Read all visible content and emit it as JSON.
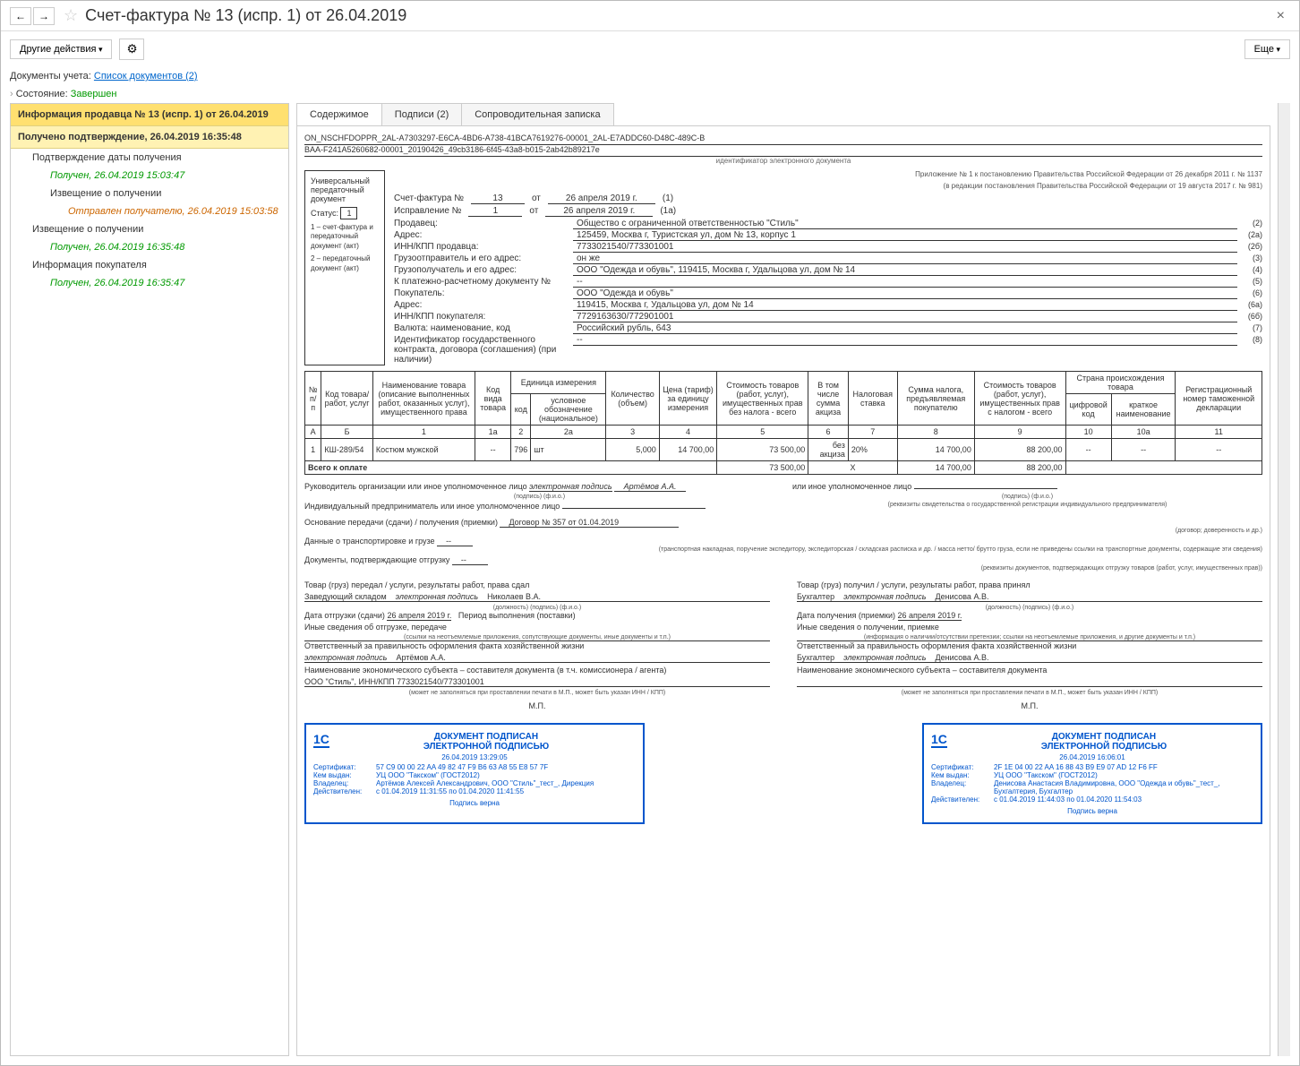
{
  "window": {
    "title": "Счет-фактура № 13 (испр. 1) от 26.04.2019",
    "other_actions": "Другие действия",
    "more": "Еще",
    "docs_label": "Документы учета:",
    "docs_link": "Список документов (2)",
    "state_label": "Состояние:",
    "state_value": "Завершен"
  },
  "sidebar": {
    "header1": "Информация продавца № 13 (испр. 1) от 26.04.2019",
    "header2": "Получено подтверждение, 26.04.2019 16:35:48",
    "items": [
      {
        "text": "Подтверждение даты получения",
        "cls": "sb-item"
      },
      {
        "text": "Получен, 26.04.2019 15:03:47",
        "cls": "sb-item l2 sb-green"
      },
      {
        "text": "Извещение о получении",
        "cls": "sb-item l2"
      },
      {
        "text": "Отправлен получателю, 26.04.2019 15:03:58",
        "cls": "sb-item l3 sb-orange"
      },
      {
        "text": "Извещение о получении",
        "cls": "sb-item"
      },
      {
        "text": "Получен, 26.04.2019 16:35:48",
        "cls": "sb-item l2 sb-green"
      },
      {
        "text": "Информация покупателя",
        "cls": "sb-item"
      },
      {
        "text": "Получен, 26.04.2019 16:35:47",
        "cls": "sb-item l2 sb-green"
      }
    ]
  },
  "tabs": {
    "t1": "Содержимое",
    "t2": "Подписи (2)",
    "t3": "Сопроводительная записка"
  },
  "doc": {
    "id_line1": "ON_NSCHFDOPPR_2AL-A7303297-E6CA-4BD6-A738-41BCA7619276-00001_2AL-E7ADDC60-D48C-489C-B",
    "id_line2": "BAA-F241A5260682-00001_20190426_49cb3186-6f45-43a8-b015-2ab42b89217e",
    "id_label": "идентификатор электронного документа",
    "upd_title": "Универсальный передаточный документ",
    "status_label": "Статус:",
    "status_value": "1",
    "note1": "1 – счет-фактура и передаточный документ (акт)",
    "note2": "2 – передаточный документ (акт)",
    "hdr_right1": "Приложение № 1 к постановлению Правительства Российской Федерации от 26 декабря 2011 г. № 1137",
    "hdr_right2": "(в редакции постановления Правительства Российской Федерации от 19 августа 2017 г. № 981)",
    "invoice_label": "Счет-фактура №",
    "invoice_num": "13",
    "date_label": "от",
    "invoice_date": "26 апреля 2019 г.",
    "line1_num": "(1)",
    "correction_label": "Исправление №",
    "correction_num": "1",
    "correction_date": "26 апреля 2019 г.",
    "line1a_num": "(1а)",
    "fields": [
      {
        "label": "Продавец:",
        "value": "Общество с ограниченной ответственностью \"Стиль\"",
        "num": "(2)"
      },
      {
        "label": "Адрес:",
        "value": "125459, Москва г, Туристская ул, дом № 13, корпус 1",
        "num": "(2а)"
      },
      {
        "label": "ИНН/КПП продавца:",
        "value": "7733021540/773301001",
        "num": "(2б)"
      },
      {
        "label": "Грузоотправитель и его адрес:",
        "value": "он же",
        "num": "(3)"
      },
      {
        "label": "Грузополучатель и его адрес:",
        "value": "ООО \"Одежда и обувь\", 119415, Москва г, Удальцова ул, дом № 14",
        "num": "(4)"
      },
      {
        "label": "К платежно-расчетному документу №",
        "value": "--",
        "num": "(5)"
      },
      {
        "label": "Покупатель:",
        "value": "ООО \"Одежда и обувь\"",
        "num": "(6)"
      },
      {
        "label": "Адрес:",
        "value": "119415, Москва г, Удальцова ул, дом № 14",
        "num": "(6а)"
      },
      {
        "label": "ИНН/КПП покупателя:",
        "value": "7729163630/772901001",
        "num": "(6б)"
      },
      {
        "label": "Валюта: наименование, код",
        "value": "Российский рубль, 643",
        "num": "(7)"
      },
      {
        "label": "Идентификатор государственного контракта, договора (соглашения) (при наличии)",
        "value": "--",
        "num": "(8)"
      }
    ],
    "table_headers": {
      "col_a": "№ п/п",
      "col_b": "Код товара/ работ, услуг",
      "col1": "Наименование товара (описание выполненных работ, оказанных услуг), имущественного права",
      "col1a": "Код вида товара",
      "col2_grp": "Единица измерения",
      "col2": "код",
      "col2a": "условное обозначение (национальное)",
      "col3": "Количество (объем)",
      "col4": "Цена (тариф) за единицу измерения",
      "col5": "Стоимость товаров (работ, услуг), имущественных прав без налога - всего",
      "col6": "В том числе сумма акциза",
      "col7": "Налоговая ставка",
      "col8": "Сумма налога, предъявляемая покупателю",
      "col9": "Стоимость товаров (работ, услуг), имущественных прав с налогом - всего",
      "col10_grp": "Страна происхождения товара",
      "col10": "цифровой код",
      "col10a": "краткое наименование",
      "col11": "Регистрационный номер таможенной декларации",
      "num_a": "А",
      "num_b": "Б",
      "num1": "1",
      "num1a": "1а",
      "num2": "2",
      "num2a": "2а",
      "num3": "3",
      "num4": "4",
      "num5": "5",
      "num6": "6",
      "num7": "7",
      "num8": "8",
      "num9": "9",
      "num10": "10",
      "num10a": "10а",
      "num11": "11"
    },
    "table_row": {
      "a": "1",
      "b": "КШ-289/54",
      "c1": "Костюм мужской",
      "c1a": "--",
      "c2": "796",
      "c2a": "шт",
      "c3": "5,000",
      "c4": "14 700,00",
      "c5": "73 500,00",
      "c6": "без акциза",
      "c7": "20%",
      "c8": "14 700,00",
      "c9": "88 200,00",
      "c10": "--",
      "c10a": "--",
      "c11": "--"
    },
    "total_label": "Всего к оплате",
    "total_5": "73 500,00",
    "total_x": "Х",
    "total_8": "14 700,00",
    "total_9": "88 200,00",
    "sig": {
      "mgr_label": "Руководитель организации или иное уполномоченное лицо",
      "esign": "электронная подпись",
      "mgr_name": "Артёмов А.А.",
      "other_label": "или иное уполномоченное лицо",
      "ip_label": "Индивидуальный предприниматель или иное уполномоченное лицо",
      "podpis": "(подпись)",
      "fio": "(ф.и.о.)",
      "rekvizity": "(реквизиты свидетельства о государственной регистрации индивидуального предпринимателя)"
    },
    "transfer": {
      "basis_label": "Основание передачи (сдачи) / получения (приемки)",
      "basis_value": "Договор № 357 от 01.04.2019",
      "basis_hint": "(договор; доверенность и др.)",
      "transport_label": "Данные о транспортировке и грузе",
      "transport_value": "--",
      "transport_hint": "(транспортная накладная, поручение экспедитору, экспедиторская / складская расписка и др. / масса нетто/ брутто груза, если не приведены ссылки на транспортные документы, содержащие эти сведения)",
      "shipdocs_label": "Документы, подтверждающие отгрузку",
      "shipdocs_value": "--",
      "shipdocs_hint": "(реквизиты документов, подтверждающих отгрузку товаров (работ, услуг, имущественных прав))",
      "left": {
        "title": "Товар (груз) передал / услуги, результаты работ, права сдал",
        "role": "Заведующий складом",
        "sig": "электронная подпись",
        "name": "Николаев В.А.",
        "role_hint": "(должность)",
        "sig_hint": "(подпись)",
        "name_hint": "(ф.и.о.)",
        "date_label": "Дата отгрузки (сдачи)",
        "date": "26 апреля 2019 г.",
        "period_label": "Период выполнения (поставки)",
        "other_label": "Иные сведения об отгрузке, передаче",
        "other_hint": "(ссылки на неотъемлемые приложения, сопутствующие документы, иные документы и т.п.)",
        "resp_label": "Ответственный за правильность оформления факта хозяйственной жизни",
        "resp_sig": "электронная подпись",
        "resp_name": "Артёмов А.А.",
        "org_label": "Наименование экономического субъекта – составителя документа (в т.ч. комиссионера / агента)",
        "org_value": "ООО \"Стиль\", ИНН/КПП 7733021540/773301001",
        "org_hint": "(может не заполняться при проставлении печати в М.П., может быть указан ИНН / КПП)",
        "mp": "М.П."
      },
      "right": {
        "title": "Товар (груз) получил / услуги, результаты работ, права принял",
        "role": "Бухгалтер",
        "sig": "электронная подпись",
        "name": "Денисова А.В.",
        "date_label": "Дата получения (приемки)",
        "date": "26 апреля 2019 г.",
        "other_label": "Иные сведения о получении, приемке",
        "other_hint": "(информация о наличии/отсутствии претензии; ссылки на неотъемлемые приложения, и другие документы и т.п.)",
        "resp_label": "Ответственный за правильность оформления факта хозяйственной жизни",
        "resp_role": "Бухгалтер",
        "resp_sig": "электронная подпись",
        "resp_name": "Денисова А.В.",
        "org_label": "Наименование экономического субъекта – составителя документа",
        "org_hint": "(может не заполняться при проставлении печати в М.П., может быть указан ИНН / КПП)",
        "mp": "М.П."
      }
    },
    "stamps": {
      "logo": "1С",
      "title1": "ДОКУМЕНТ ПОДПИСАН",
      "title2": "ЭЛЕКТРОННОЙ ПОДПИСЬЮ",
      "left": {
        "date": "26.04.2019 13:29:05",
        "cert_lbl": "Сертификат:",
        "cert": "57 C9 00 00 22 AA 49 82 47 F9 B6 63 A8 55 E8 57 7F",
        "issuer_lbl": "Кем выдан:",
        "issuer": "УЦ ООО \"Такском\" (ГОСТ2012)",
        "owner_lbl": "Владелец:",
        "owner": "Артёмов Алексей Александрович, ООО \"Стиль\"_тест_, Дирекция",
        "valid_lbl": "Действителен:",
        "valid": "с 01.04.2019 11:31:55 по 01.04.2020 11:41:55",
        "verify": "Подпись верна"
      },
      "right": {
        "date": "26.04.2019 16:06:01",
        "cert": "2F 1E 04 00 22 AA 16 88 43 B9 E9 07 AD 12 F6 FF",
        "issuer": "УЦ ООО \"Такском\" (ГОСТ2012)",
        "owner": "Денисова Анастасия Владимировна, ООО \"Одежда и обувь\"_тест_, Бухгалтерия, Бухгалтер",
        "valid": "с 01.04.2019 11:44:03 по 01.04.2020 11:54:03",
        "verify": "Подпись верна"
      }
    }
  }
}
